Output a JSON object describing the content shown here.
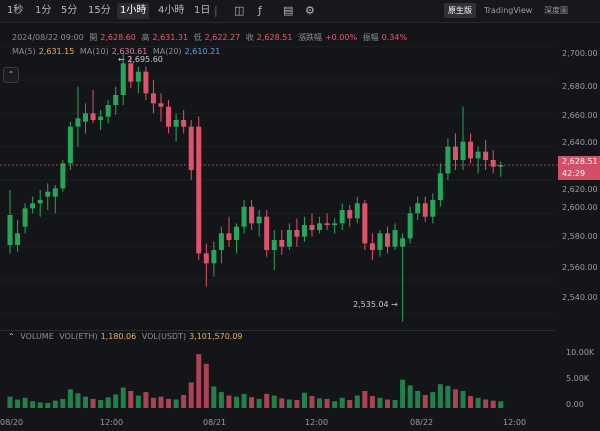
{
  "toolbar": {
    "timeframes": [
      "1秒",
      "1分",
      "5分",
      "15分",
      "1小時",
      "4小時",
      "1日"
    ],
    "active": "1小時",
    "views": [
      "原生版",
      "TradingView",
      "深度圖"
    ],
    "active_view": "原生版",
    "icons": [
      "chart-type-icon",
      "indicator-icon",
      "settings-icon"
    ]
  },
  "info": {
    "datetime": "2024/08/22 09:00",
    "open_label": "開",
    "open": "2,628.60",
    "high_label": "高",
    "high": "2,631.31",
    "low_label": "低",
    "low": "2,622.27",
    "close": "2,628.51",
    "change_label": "漲跌幅",
    "change": "+0.00%",
    "amp_label": "振幅",
    "amp": "0.34%"
  },
  "ma": {
    "ma5_label": "MA(5)",
    "ma5": "2,631.15",
    "ma10_label": "MA(10)",
    "ma10": "2,630.61",
    "ma20_label": "MA(20)",
    "ma20": "2,610.21"
  },
  "price_axis": {
    "ticks": [
      "2,700.00",
      "2,680.00",
      "2,660.00",
      "2,640.00",
      "2,620.00",
      "2,600.00",
      "2,580.00",
      "2,560.00",
      "2,540.00"
    ],
    "current_price": "2,628.51",
    "countdown": "42:29"
  },
  "annotations": {
    "high": "← 2,695.60",
    "low": "2,535.04 →"
  },
  "volume": {
    "title": "VOLUME",
    "eth_label": "VOL(ETH)",
    "eth": "1,180.06",
    "usdt_label": "VOL(USDT)",
    "usdt": "3,101,570.09",
    "ticks": [
      "10.00K",
      "5.00K",
      "0.00"
    ]
  },
  "time_axis": [
    "08/20",
    "12:00",
    "08/21",
    "12:00",
    "08/22",
    "12:00"
  ],
  "colors": {
    "up": "#26a65b",
    "down": "#e0526c",
    "bg": "#141518"
  },
  "chart_data": {
    "type": "candlestick",
    "price_range": [
      2530,
      2710
    ],
    "volume_range": [
      0,
      12000
    ],
    "candles": [
      {
        "o": 2581,
        "h": 2614,
        "l": 2576,
        "c": 2599,
        "v": 2000
      },
      {
        "o": 2581,
        "h": 2596,
        "l": 2577,
        "c": 2588,
        "v": 1500
      },
      {
        "o": 2592,
        "h": 2606,
        "l": 2588,
        "c": 2603,
        "v": 1800
      },
      {
        "o": 2603,
        "h": 2610,
        "l": 2600,
        "c": 2606,
        "v": 1200
      },
      {
        "o": 2606,
        "h": 2614,
        "l": 2598,
        "c": 2608,
        "v": 1000
      },
      {
        "o": 2610,
        "h": 2618,
        "l": 2602,
        "c": 2613,
        "v": 900
      },
      {
        "o": 2610,
        "h": 2617,
        "l": 2600,
        "c": 2615,
        "v": 1300
      },
      {
        "o": 2615,
        "h": 2632,
        "l": 2613,
        "c": 2630,
        "v": 1600
      },
      {
        "o": 2630,
        "h": 2655,
        "l": 2626,
        "c": 2652,
        "v": 3300
      },
      {
        "o": 2652,
        "h": 2676,
        "l": 2640,
        "c": 2657,
        "v": 2600
      },
      {
        "o": 2655,
        "h": 2666,
        "l": 2648,
        "c": 2660,
        "v": 2000
      },
      {
        "o": 2660,
        "h": 2674,
        "l": 2654,
        "c": 2656,
        "v": 1600
      },
      {
        "o": 2656,
        "h": 2662,
        "l": 2650,
        "c": 2658,
        "v": 1400
      },
      {
        "o": 2658,
        "h": 2668,
        "l": 2654,
        "c": 2665,
        "v": 1900
      },
      {
        "o": 2665,
        "h": 2676,
        "l": 2659,
        "c": 2671,
        "v": 2400
      },
      {
        "o": 2671,
        "h": 2696,
        "l": 2665,
        "c": 2690,
        "v": 3600
      },
      {
        "o": 2690,
        "h": 2694,
        "l": 2675,
        "c": 2679,
        "v": 3000
      },
      {
        "o": 2679,
        "h": 2688,
        "l": 2672,
        "c": 2685,
        "v": 2200
      },
      {
        "o": 2685,
        "h": 2688,
        "l": 2668,
        "c": 2672,
        "v": 2800
      },
      {
        "o": 2672,
        "h": 2680,
        "l": 2660,
        "c": 2666,
        "v": 1800
      },
      {
        "o": 2666,
        "h": 2672,
        "l": 2655,
        "c": 2664,
        "v": 2000
      },
      {
        "o": 2664,
        "h": 2668,
        "l": 2648,
        "c": 2652,
        "v": 1600
      },
      {
        "o": 2652,
        "h": 2660,
        "l": 2643,
        "c": 2656,
        "v": 1500
      },
      {
        "o": 2656,
        "h": 2662,
        "l": 2648,
        "c": 2652,
        "v": 2300
      },
      {
        "o": 2652,
        "h": 2656,
        "l": 2620,
        "c": 2626,
        "v": 4500
      },
      {
        "o": 2652,
        "h": 2658,
        "l": 2572,
        "c": 2576,
        "v": 9500
      },
      {
        "o": 2576,
        "h": 2582,
        "l": 2556,
        "c": 2570,
        "v": 7800
      },
      {
        "o": 2570,
        "h": 2583,
        "l": 2562,
        "c": 2578,
        "v": 3800
      },
      {
        "o": 2578,
        "h": 2592,
        "l": 2570,
        "c": 2588,
        "v": 2800
      },
      {
        "o": 2588,
        "h": 2598,
        "l": 2580,
        "c": 2584,
        "v": 2200
      },
      {
        "o": 2584,
        "h": 2594,
        "l": 2576,
        "c": 2592,
        "v": 2000
      },
      {
        "o": 2592,
        "h": 2608,
        "l": 2588,
        "c": 2604,
        "v": 2500
      },
      {
        "o": 2604,
        "h": 2608,
        "l": 2590,
        "c": 2594,
        "v": 1900
      },
      {
        "o": 2594,
        "h": 2602,
        "l": 2586,
        "c": 2598,
        "v": 1600
      },
      {
        "o": 2598,
        "h": 2602,
        "l": 2574,
        "c": 2578,
        "v": 2500
      },
      {
        "o": 2578,
        "h": 2590,
        "l": 2566,
        "c": 2584,
        "v": 2200
      },
      {
        "o": 2584,
        "h": 2590,
        "l": 2575,
        "c": 2580,
        "v": 1700
      },
      {
        "o": 2580,
        "h": 2594,
        "l": 2578,
        "c": 2590,
        "v": 1500
      },
      {
        "o": 2590,
        "h": 2597,
        "l": 2580,
        "c": 2586,
        "v": 1400
      },
      {
        "o": 2586,
        "h": 2598,
        "l": 2583,
        "c": 2593,
        "v": 2700
      },
      {
        "o": 2593,
        "h": 2600,
        "l": 2586,
        "c": 2590,
        "v": 2100
      },
      {
        "o": 2590,
        "h": 2598,
        "l": 2588,
        "c": 2594,
        "v": 1700
      },
      {
        "o": 2594,
        "h": 2600,
        "l": 2590,
        "c": 2593,
        "v": 1600
      },
      {
        "o": 2593,
        "h": 2597,
        "l": 2588,
        "c": 2594,
        "v": 1200
      },
      {
        "o": 2594,
        "h": 2606,
        "l": 2590,
        "c": 2602,
        "v": 1800
      },
      {
        "o": 2602,
        "h": 2605,
        "l": 2592,
        "c": 2597,
        "v": 1400
      },
      {
        "o": 2597,
        "h": 2610,
        "l": 2594,
        "c": 2606,
        "v": 2200
      },
      {
        "o": 2606,
        "h": 2608,
        "l": 2578,
        "c": 2582,
        "v": 3000
      },
      {
        "o": 2582,
        "h": 2588,
        "l": 2572,
        "c": 2578,
        "v": 2100
      },
      {
        "o": 2578,
        "h": 2590,
        "l": 2574,
        "c": 2588,
        "v": 1800
      },
      {
        "o": 2588,
        "h": 2592,
        "l": 2576,
        "c": 2580,
        "v": 1500
      },
      {
        "o": 2580,
        "h": 2594,
        "l": 2578,
        "c": 2590,
        "v": 1400
      },
      {
        "o": 2580,
        "h": 2588,
        "l": 2535,
        "c": 2585,
        "v": 5000
      },
      {
        "o": 2585,
        "h": 2604,
        "l": 2582,
        "c": 2600,
        "v": 4000
      },
      {
        "o": 2600,
        "h": 2610,
        "l": 2596,
        "c": 2606,
        "v": 3000
      },
      {
        "o": 2606,
        "h": 2610,
        "l": 2595,
        "c": 2598,
        "v": 2300
      },
      {
        "o": 2598,
        "h": 2612,
        "l": 2594,
        "c": 2608,
        "v": 2800
      },
      {
        "o": 2608,
        "h": 2630,
        "l": 2604,
        "c": 2624,
        "v": 4200
      },
      {
        "o": 2624,
        "h": 2645,
        "l": 2620,
        "c": 2640,
        "v": 3900
      },
      {
        "o": 2640,
        "h": 2648,
        "l": 2626,
        "c": 2632,
        "v": 3300
      },
      {
        "o": 2632,
        "h": 2664,
        "l": 2626,
        "c": 2643,
        "v": 3000
      },
      {
        "o": 2643,
        "h": 2648,
        "l": 2630,
        "c": 2633,
        "v": 2100
      },
      {
        "o": 2633,
        "h": 2640,
        "l": 2624,
        "c": 2637,
        "v": 1800
      },
      {
        "o": 2637,
        "h": 2644,
        "l": 2626,
        "c": 2632,
        "v": 1500
      },
      {
        "o": 2632,
        "h": 2638,
        "l": 2624,
        "c": 2628,
        "v": 1300
      },
      {
        "o": 2628,
        "h": 2631,
        "l": 2622,
        "c": 2629,
        "v": 1180
      }
    ]
  }
}
